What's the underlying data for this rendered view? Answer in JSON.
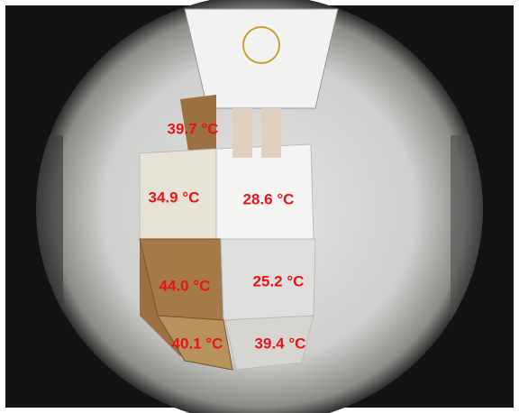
{
  "labels": [
    "39.7 °C",
    "34.9 °C",
    "28.6 °C",
    "44.0 °C",
    "25.2 °C",
    "40.1 °C",
    "39.4 °C"
  ]
}
